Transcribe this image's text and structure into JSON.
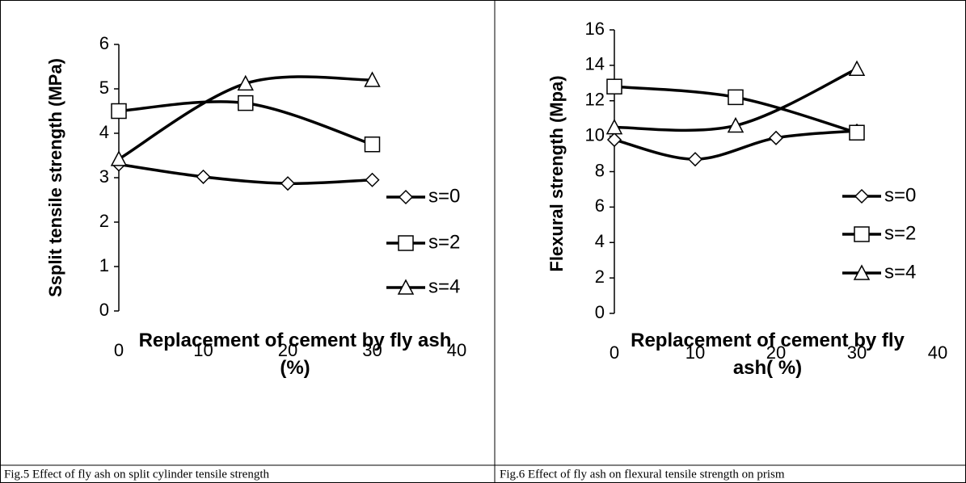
{
  "chart_data": [
    {
      "type": "line",
      "caption": "Fig.5 Effect of fly ash on split cylinder  tensile strength",
      "ylabel": "Ssplit tensile strength (MPa)",
      "xlabel": "Replacement of cement by fly ash (%)",
      "xlim": [
        0,
        40
      ],
      "xticks": [
        0,
        10,
        20,
        30,
        40
      ],
      "ylim": [
        0,
        6
      ],
      "yticks": [
        0,
        1,
        2,
        3,
        4,
        5,
        6
      ],
      "legend": "right",
      "series": [
        {
          "name": "s=0",
          "color": "#000000",
          "marker": "diamond",
          "x": [
            0,
            10,
            20,
            30
          ],
          "values": [
            3.3,
            3.02,
            2.87,
            2.95
          ]
        },
        {
          "name": "s=2",
          "color": "#000000",
          "marker": "square",
          "x": [
            0,
            15,
            30
          ],
          "values": [
            4.5,
            4.68,
            3.75
          ]
        },
        {
          "name": "s=4",
          "color": "#000000",
          "marker": "triangle",
          "x": [
            0,
            15,
            30
          ],
          "values": [
            3.42,
            5.12,
            5.2
          ]
        }
      ]
    },
    {
      "type": "line",
      "caption": "Fig.6 Effect of fly ash on flexural tensile strength on prism",
      "ylabel": "Flexural strength (Mpa)",
      "xlabel": "Replacement of cement by fly ash( %)",
      "xlim": [
        0,
        40
      ],
      "xticks": [
        0,
        10,
        20,
        30,
        40
      ],
      "ylim": [
        0,
        16
      ],
      "yticks": [
        0,
        2,
        4,
        6,
        8,
        10,
        12,
        14,
        16
      ],
      "legend": "right",
      "series": [
        {
          "name": "s=0",
          "color": "#000000",
          "marker": "diamond",
          "x": [
            0,
            10,
            20,
            30
          ],
          "values": [
            9.8,
            8.7,
            9.9,
            10.3
          ]
        },
        {
          "name": "s=2",
          "color": "#000000",
          "marker": "square",
          "x": [
            0,
            15,
            30
          ],
          "values": [
            12.8,
            12.2,
            10.2
          ]
        },
        {
          "name": "s=4",
          "color": "#000000",
          "marker": "triangle",
          "x": [
            0,
            15,
            30
          ],
          "values": [
            10.5,
            10.6,
            13.8
          ]
        }
      ]
    }
  ]
}
